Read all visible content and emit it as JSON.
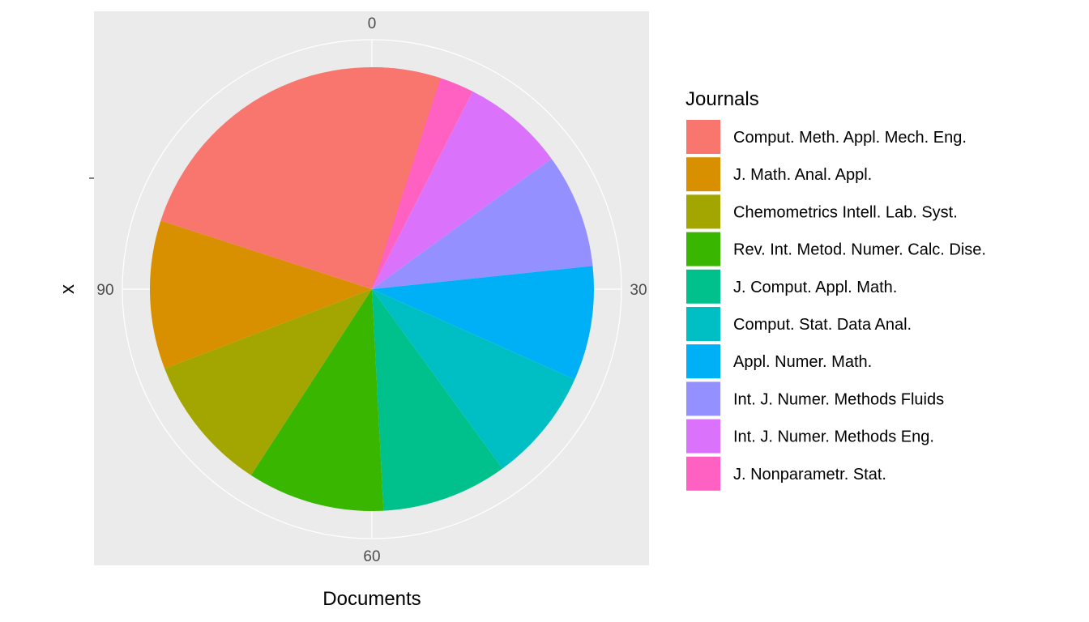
{
  "chart_data": {
    "type": "pie",
    "xlabel": "Documents",
    "ylabel": "x",
    "theta_ticks": [
      0,
      30,
      60,
      90
    ],
    "theta_max": 120,
    "legend": {
      "title": "Journals",
      "placement": "right"
    },
    "slices": [
      {
        "label": "J. Nonparametr. Stat.",
        "value": 9,
        "color": "#FF61C3"
      },
      {
        "label": "Int. J. Numer. Methods Eng.",
        "value": 9,
        "color": "#DB72FB"
      },
      {
        "label": "Int. J. Numer. Methods Fluids",
        "value": 10,
        "color": "#9590FF"
      },
      {
        "label": "Appl. Numer. Math.",
        "value": 10,
        "color": "#00B0F6"
      },
      {
        "label": "Comput. Stat. Data Anal.",
        "value": 10,
        "color": "#00BFC4"
      },
      {
        "label": "J. Comput. Appl. Math.",
        "value": 11,
        "color": "#00C08B"
      },
      {
        "label": "Rev. Int. Metod. Numer. Calc. Dise.",
        "value": 12,
        "color": "#39B600"
      },
      {
        "label": "Chemometrics Intell. Lab. Syst.",
        "value": 12,
        "color": "#A3A500"
      },
      {
        "label": "J. Math. Anal. Appl.",
        "value": 13,
        "color": "#D89000"
      },
      {
        "label": "Comput. Meth. Appl. Mech. Eng.",
        "value": 30,
        "color": "#F8766D"
      }
    ],
    "legend_order": [
      "Comput. Meth. Appl. Mech. Eng.",
      "J. Math. Anal. Appl.",
      "Chemometrics Intell. Lab. Syst.",
      "Rev. Int. Metod. Numer. Calc. Dise.",
      "J. Comput. Appl. Math.",
      "Comput. Stat. Data Anal.",
      "Appl. Numer. Math.",
      "Int. J. Numer. Methods Fluids",
      "Int. J. Numer. Methods Eng.",
      "J. Nonparametr. Stat."
    ],
    "grid": true,
    "panel_background": "#EBEBEB"
  }
}
